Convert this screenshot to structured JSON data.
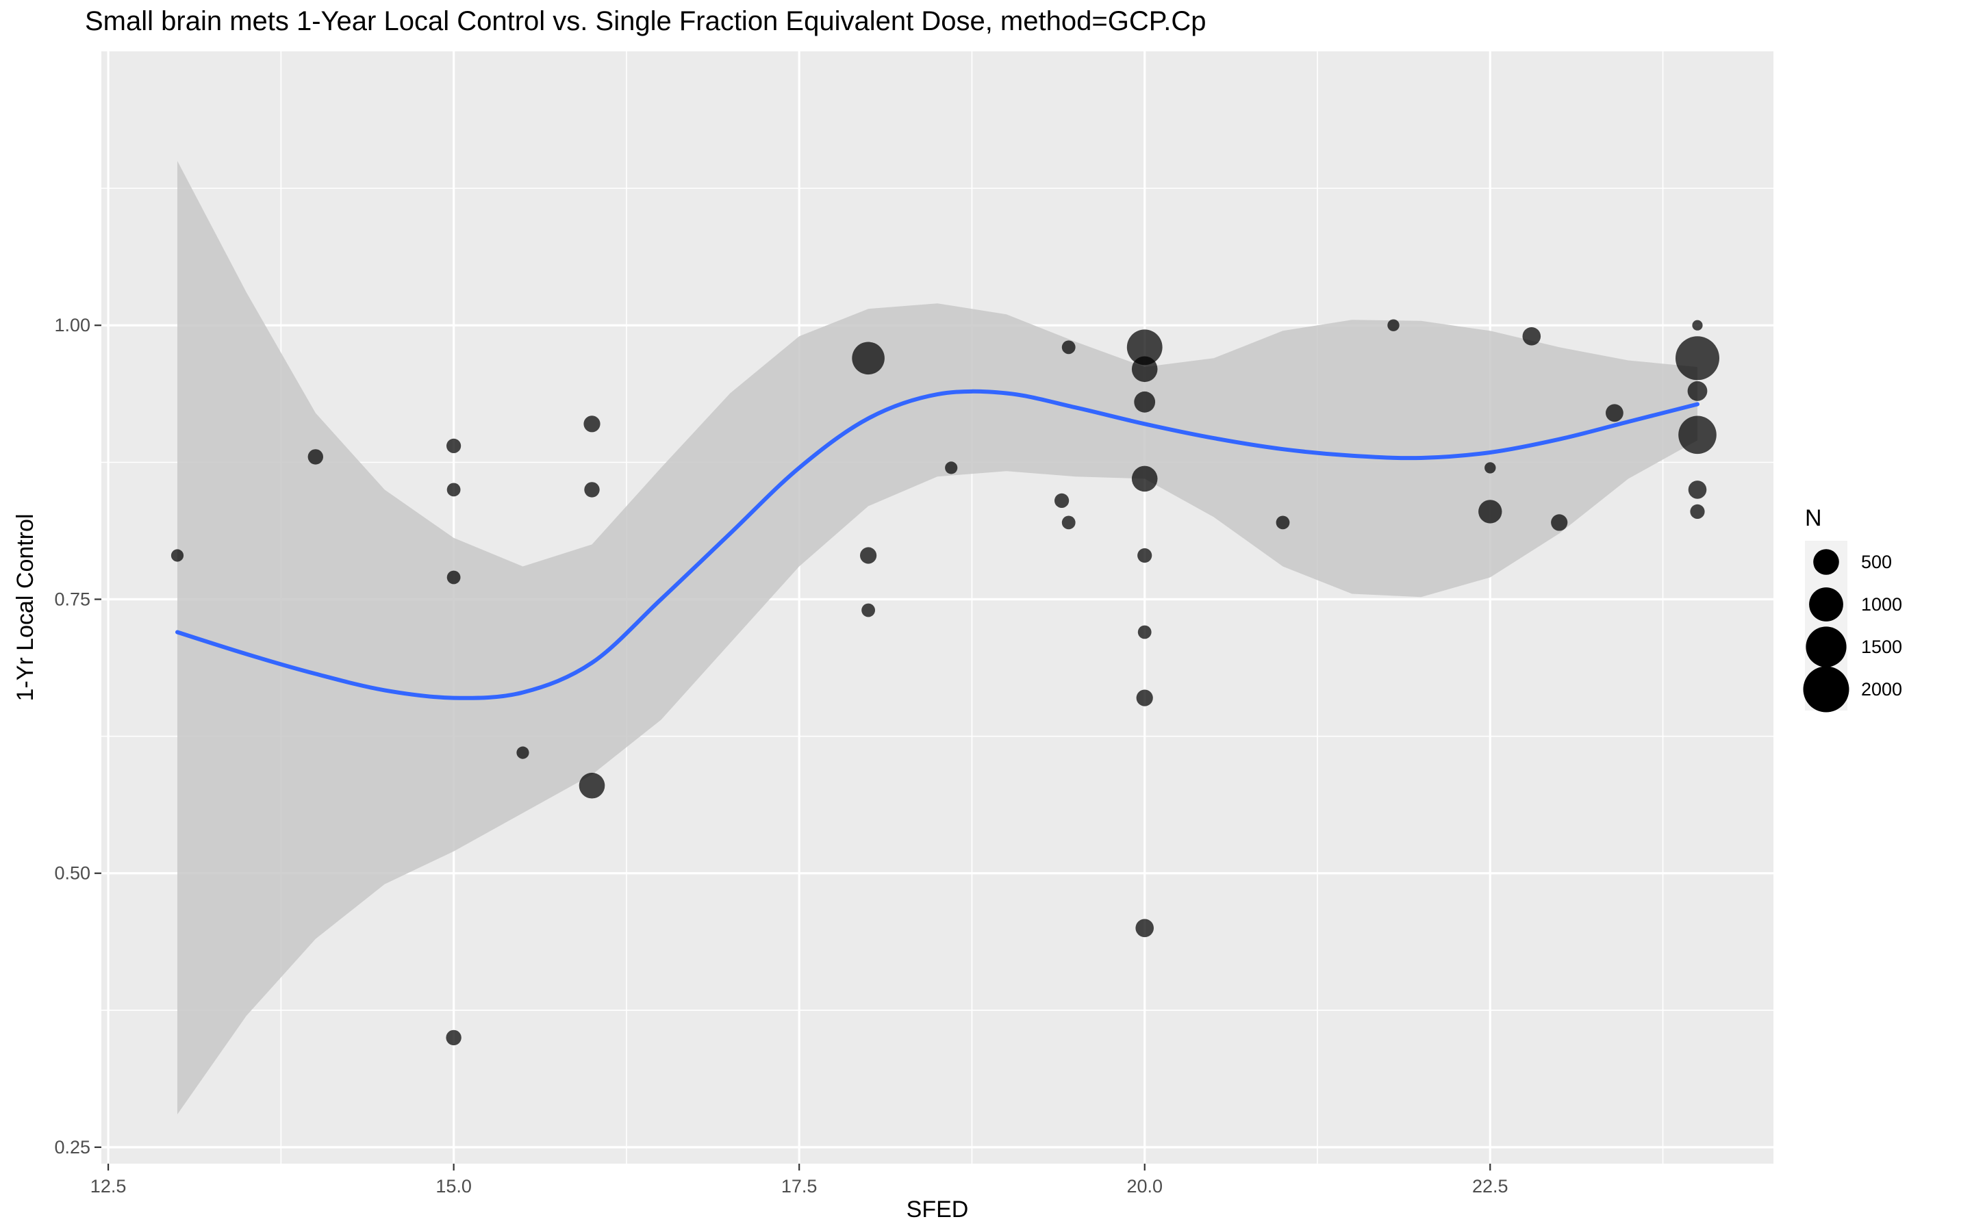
{
  "chart_data": {
    "type": "scatter",
    "title": "Small brain mets 1-Year Local Control vs. Single Fraction Equivalent Dose, method=GCP.Cp",
    "xlabel": "SFED",
    "ylabel": "1-Yr Local Control",
    "xlim": [
      12.45,
      24.55
    ],
    "ylim": [
      0.235,
      1.25
    ],
    "x_ticks": [
      12.5,
      15.0,
      17.5,
      20.0,
      22.5
    ],
    "x_tick_labels": [
      "12.5",
      "15.0",
      "17.5",
      "20.0",
      "22.5"
    ],
    "y_ticks": [
      0.25,
      0.5,
      0.75,
      1.0
    ],
    "y_tick_labels": [
      "0.25",
      "0.50",
      "0.75",
      "1.00"
    ],
    "grid": true,
    "background": "#ebebeb",
    "smooth_color": "#3366ff",
    "ribbon_color": "#c8c8c8",
    "point_color": "#000000",
    "legend": {
      "title": "N",
      "position": "right",
      "entries": [
        {
          "label": "500",
          "n": 500
        },
        {
          "label": "1000",
          "n": 1000
        },
        {
          "label": "1500",
          "n": 1500
        },
        {
          "label": "2000",
          "n": 2000
        }
      ]
    },
    "points": [
      {
        "x": 13.0,
        "y": 0.79,
        "n": 60
      },
      {
        "x": 14.0,
        "y": 0.88,
        "n": 120
      },
      {
        "x": 15.0,
        "y": 0.89,
        "n": 100
      },
      {
        "x": 15.0,
        "y": 0.85,
        "n": 80
      },
      {
        "x": 15.0,
        "y": 0.77,
        "n": 80
      },
      {
        "x": 15.0,
        "y": 0.35,
        "n": 120
      },
      {
        "x": 15.5,
        "y": 0.61,
        "n": 60
      },
      {
        "x": 16.0,
        "y": 0.91,
        "n": 150
      },
      {
        "x": 16.0,
        "y": 0.85,
        "n": 120
      },
      {
        "x": 16.0,
        "y": 0.58,
        "n": 500
      },
      {
        "x": 18.0,
        "y": 0.97,
        "n": 900
      },
      {
        "x": 18.0,
        "y": 0.79,
        "n": 150
      },
      {
        "x": 18.0,
        "y": 0.74,
        "n": 80
      },
      {
        "x": 18.6,
        "y": 0.87,
        "n": 60
      },
      {
        "x": 19.4,
        "y": 0.84,
        "n": 100
      },
      {
        "x": 19.45,
        "y": 0.82,
        "n": 80
      },
      {
        "x": 19.45,
        "y": 0.98,
        "n": 80
      },
      {
        "x": 20.0,
        "y": 0.98,
        "n": 1100
      },
      {
        "x": 20.0,
        "y": 0.96,
        "n": 500
      },
      {
        "x": 20.0,
        "y": 0.93,
        "n": 300
      },
      {
        "x": 20.0,
        "y": 0.86,
        "n": 500
      },
      {
        "x": 20.0,
        "y": 0.79,
        "n": 100
      },
      {
        "x": 20.0,
        "y": 0.72,
        "n": 80
      },
      {
        "x": 20.0,
        "y": 0.66,
        "n": 150
      },
      {
        "x": 20.0,
        "y": 0.45,
        "n": 200
      },
      {
        "x": 21.0,
        "y": 0.82,
        "n": 80
      },
      {
        "x": 21.8,
        "y": 1.0,
        "n": 50
      },
      {
        "x": 22.5,
        "y": 0.87,
        "n": 40
      },
      {
        "x": 22.5,
        "y": 0.83,
        "n": 400
      },
      {
        "x": 22.8,
        "y": 0.99,
        "n": 200
      },
      {
        "x": 23.0,
        "y": 0.82,
        "n": 150
      },
      {
        "x": 23.4,
        "y": 0.92,
        "n": 180
      },
      {
        "x": 24.0,
        "y": 1.0,
        "n": 30
      },
      {
        "x": 24.0,
        "y": 0.97,
        "n": 1800
      },
      {
        "x": 24.0,
        "y": 0.94,
        "n": 250
      },
      {
        "x": 24.0,
        "y": 0.9,
        "n": 1300
      },
      {
        "x": 24.0,
        "y": 0.85,
        "n": 200
      },
      {
        "x": 24.0,
        "y": 0.83,
        "n": 100
      }
    ],
    "smooth": {
      "x": [
        13.0,
        13.5,
        14.0,
        14.5,
        15.0,
        15.5,
        16.0,
        16.5,
        17.0,
        17.5,
        18.0,
        18.5,
        19.0,
        19.5,
        20.0,
        20.5,
        21.0,
        21.5,
        22.0,
        22.5,
        23.0,
        23.5,
        24.0
      ],
      "y": [
        0.72,
        0.7,
        0.682,
        0.667,
        0.66,
        0.665,
        0.692,
        0.75,
        0.81,
        0.87,
        0.915,
        0.937,
        0.938,
        0.925,
        0.91,
        0.897,
        0.887,
        0.881,
        0.879,
        0.884,
        0.896,
        0.912,
        0.928
      ],
      "upper": [
        1.15,
        1.03,
        0.92,
        0.85,
        0.806,
        0.78,
        0.8,
        0.87,
        0.938,
        0.99,
        1.015,
        1.02,
        1.01,
        0.985,
        0.962,
        0.97,
        0.995,
        1.005,
        1.004,
        0.995,
        0.98,
        0.968,
        0.962
      ],
      "lower": [
        0.28,
        0.37,
        0.44,
        0.49,
        0.52,
        0.555,
        0.59,
        0.64,
        0.71,
        0.78,
        0.835,
        0.862,
        0.867,
        0.862,
        0.86,
        0.825,
        0.78,
        0.755,
        0.752,
        0.77,
        0.81,
        0.86,
        0.895
      ]
    }
  }
}
